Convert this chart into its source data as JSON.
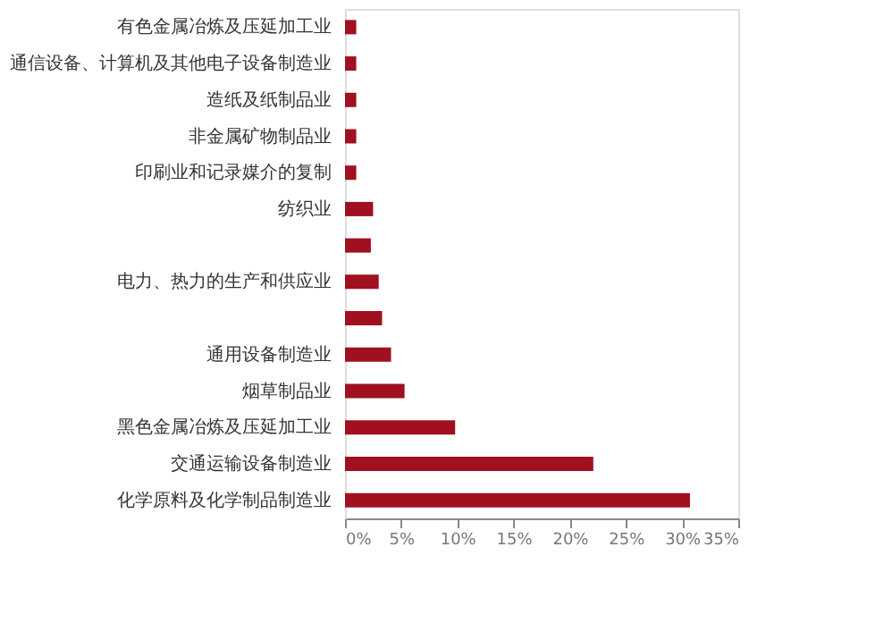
{
  "chart_data": {
    "type": "bar",
    "orientation": "horizontal",
    "categories": [
      "有色金属冶炼及压延加工业",
      "通信设备、计算机及其他电子设备制造业",
      "造纸及纸制品业",
      "非金属矿物制品业",
      "印刷业和记录媒介的复制",
      "纺织业",
      null,
      "电力、热力的生产和供应业",
      null,
      "通用设备制造业",
      "烟草制品业",
      "黑色金属冶炼及压延加工业",
      "交通运输设备制造业",
      "化学原料及化学制品制造业"
    ],
    "values": [
      1.0,
      1.0,
      1.0,
      1.0,
      1.0,
      2.5,
      2.3,
      3.0,
      3.3,
      4.1,
      5.3,
      9.8,
      22.1,
      30.7
    ],
    "color": "#a0101e",
    "xlim": [
      0,
      35
    ],
    "xticks": [
      {
        "value": 0,
        "label": "0%"
      },
      {
        "value": 5,
        "label": "5%"
      },
      {
        "value": 10,
        "label": "10%"
      },
      {
        "value": 15,
        "label": "15%"
      },
      {
        "value": 20,
        "label": "20%"
      },
      {
        "value": 25,
        "label": "25%"
      },
      {
        "value": 30,
        "label": "30%"
      },
      {
        "value": 35,
        "label": "35%"
      }
    ],
    "grid": false
  }
}
